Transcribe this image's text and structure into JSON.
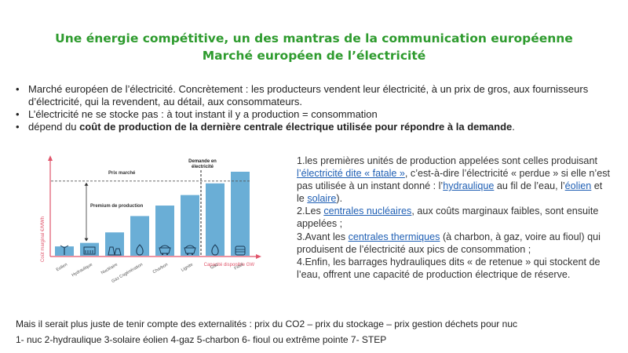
{
  "title": {
    "line1": "Une énergie compétitive, un des mantras de la communication européenne",
    "line2": "Marché européen de l’électricité"
  },
  "bullets": [
    "Marché européen de l’électricité. Concrètement : les producteurs vendent leur électricité, à un prix de gros, aux fournisseurs d’électricité, qui la revendent, au détail, aux consommateurs.",
    "L’électricité ne se stocke pas :  à tout instant il y  a production = consommation"
  ],
  "bullet3": {
    "prefix": "dépend du ",
    "bold": "coût de production de la dernière centrale électrique utilisée pour répondre à la demande",
    "suffix": "."
  },
  "right_text": {
    "p1_a": "1.les premières unités de production appelées sont celles produisant ",
    "p1_link1": "l’électricité dite « fatale »",
    "p1_b": ", c’est-à-dire l’électricité « perdue » si elle n’est pas utilisée à un instant donné : l’",
    "p1_link2": "hydraulique",
    "p1_c": " au fil de l’eau, l’",
    "p1_link3": "éolien",
    "p1_d": " et le ",
    "p1_link4": "solaire",
    "p1_e": ").",
    "p2_a": "2.Les ",
    "p2_link": "centrales nucléaires",
    "p2_b": ", aux coûts marginaux faibles, sont ensuite appelées  ;",
    "p3_a": "3.Avant les ",
    "p3_link": "centrales thermiques",
    "p3_b": " (à charbon, à gaz, voire au fioul) qui produisent de l’électricité aux pics de consommation ;",
    "p4": "4.Enfin, les barrages hydrauliques dits « de retenue » qui stockent de l’eau, offrent une capacité de production électrique de réserve."
  },
  "footer": {
    "line1": "Mais il serait plus juste de tenir compte des externalités : prix du CO2 – prix du stockage – prix gestion déchets pour nuc",
    "line2": "1- nuc 2-hydraulique 3-solaire éolien 4-gaz 5-charbon 6- fioul ou extrême pointe 7- STEP"
  },
  "colors": {
    "title_green": "#2e9b2e",
    "bar_blue": "#6aaed6",
    "axis_red": "#e0556b",
    "link_blue": "#1f5fb4"
  },
  "chart_data": {
    "type": "bar",
    "categories": [
      "Eolien",
      "Hydraulique",
      "Nucléaire",
      "Gaz Cogénération",
      "Charbon",
      "Lignite",
      "Gaz",
      "Fioul"
    ],
    "values": [
      8,
      11,
      20,
      34,
      43,
      52,
      62,
      72
    ],
    "icons": [
      "wind-turbine-icon",
      "dam-icon",
      "nuclear-plant-icon",
      "flame-icon",
      "coal-cart-icon",
      "lignite-cart-icon",
      "flame-icon",
      "oil-barrel-icon"
    ],
    "ylabel": "Coût marginal €/MWh",
    "xlabel": "Capacité disponible GW",
    "price_label": "Prix marché",
    "price_value": 64,
    "premium_label": "Premium de production",
    "demand_label": "Demande en électricité",
    "demand_after_index": 5,
    "ylim": [
      0,
      80
    ]
  }
}
